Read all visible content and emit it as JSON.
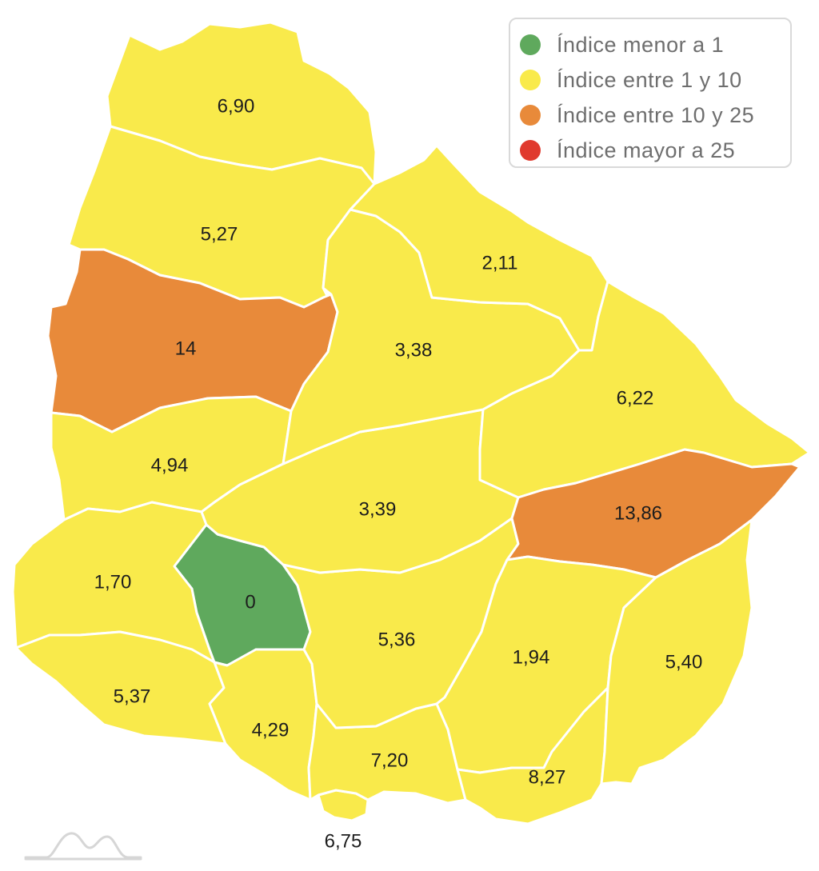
{
  "colors": {
    "green": "#5fa95d",
    "yellow": "#f9ea4b",
    "orange": "#e88a3a",
    "red": "#e03a2e"
  },
  "legend": [
    {
      "label": "Índice menor a 1",
      "color": "#5fa95d"
    },
    {
      "label": "Índice entre 1 y 10",
      "color": "#f9ea4b"
    },
    {
      "label": "Índice entre 10 y 25",
      "color": "#e88a3a"
    },
    {
      "label": "Índice mayor a 25",
      "color": "#e03a2e"
    }
  ],
  "regions": {
    "artigas": {
      "value": "6,90",
      "category": "yellow"
    },
    "salto": {
      "value": "5,27",
      "category": "yellow"
    },
    "paysandu": {
      "value": "14",
      "category": "orange"
    },
    "rio_negro": {
      "value": "4,94",
      "category": "yellow"
    },
    "soriano": {
      "value": "1,70",
      "category": "yellow"
    },
    "colonia": {
      "value": "5,37",
      "category": "yellow"
    },
    "flores": {
      "value": "0",
      "category": "green"
    },
    "san_jose": {
      "value": "4,29",
      "category": "yellow"
    },
    "montevideo": {
      "value": "6,75",
      "category": "yellow"
    },
    "canelones": {
      "value": "7,20",
      "category": "yellow"
    },
    "florida": {
      "value": "5,36",
      "category": "yellow"
    },
    "durazno": {
      "value": "3,39",
      "category": "yellow"
    },
    "tacuarembo": {
      "value": "3,38",
      "category": "yellow"
    },
    "rivera": {
      "value": "2,11",
      "category": "yellow"
    },
    "cerro_largo": {
      "value": "6,22",
      "category": "yellow"
    },
    "treinta_y_tres": {
      "value": "13,86",
      "category": "orange"
    },
    "lavalleja": {
      "value": "1,94",
      "category": "yellow"
    },
    "maldonado": {
      "value": "8,27",
      "category": "yellow"
    },
    "rocha": {
      "value": "5,40",
      "category": "yellow"
    }
  }
}
